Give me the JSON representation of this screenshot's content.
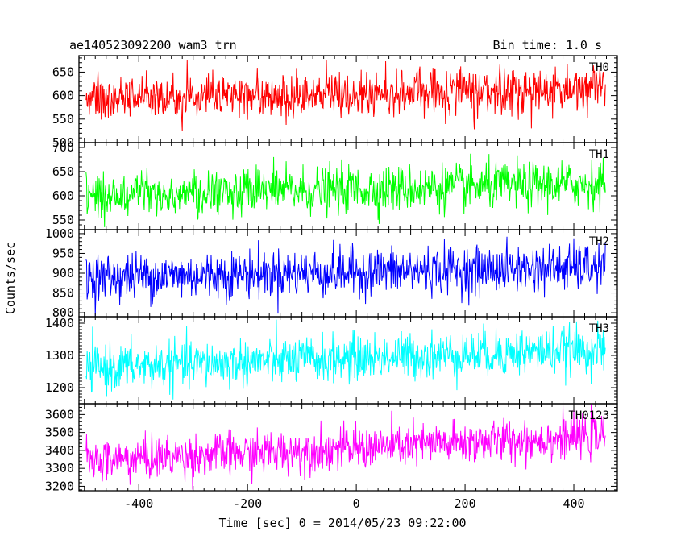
{
  "header": {
    "title": "ae140523092200_wam3_trn",
    "bin_time": "Bin time: 1.0 s"
  },
  "chart_data": {
    "type": "line",
    "xlabel": "Time [sec] 0 = 2014/05/23 09:22:00",
    "ylabel": "Counts/sec",
    "xlim": [
      -510,
      480
    ],
    "x_ticks": [
      -400,
      -200,
      0,
      200,
      400
    ],
    "x_range": [
      -497,
      458
    ],
    "bin_seconds": 1.0,
    "grid": false,
    "panels": [
      {
        "label": "TH0",
        "color": "#ff0000",
        "ylim": [
          500,
          685
        ],
        "y_ticks": [
          500,
          550,
          600,
          650
        ],
        "mean_start": 595,
        "mean_end": 615,
        "noise": 24
      },
      {
        "label": "TH1",
        "color": "#00ff00",
        "ylim": [
          530,
          710
        ],
        "y_ticks": [
          550,
          600,
          650,
          700
        ],
        "mean_start": 600,
        "mean_end": 625,
        "noise": 24
      },
      {
        "label": "TH2",
        "color": "#0000ff",
        "ylim": [
          790,
          1010
        ],
        "y_ticks": [
          800,
          850,
          900,
          950,
          1000
        ],
        "mean_start": 890,
        "mean_end": 915,
        "noise": 30
      },
      {
        "label": "TH3",
        "color": "#00ffff",
        "ylim": [
          1150,
          1420
        ],
        "y_ticks": [
          1200,
          1300,
          1400
        ],
        "mean_start": 1260,
        "mean_end": 1320,
        "noise": 36
      },
      {
        "label": "TH0123",
        "color": "#ff00ff",
        "ylim": [
          3175,
          3660
        ],
        "y_ticks": [
          3200,
          3300,
          3400,
          3500,
          3600
        ],
        "mean_start": 3340,
        "mean_end": 3480,
        "noise": 60
      }
    ]
  }
}
